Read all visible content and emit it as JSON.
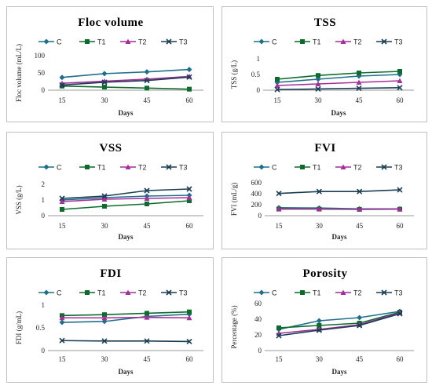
{
  "colors": {
    "C": "#1f6f8b",
    "T1": "#0d6b2b",
    "T2": "#a42f9b",
    "T3": "#1b3d55"
  },
  "chart_data": [
    {
      "type": "line",
      "title": "Floc volume",
      "xlabel": "Days",
      "ylabel": "Floc volume (mL/L)",
      "categories": [
        "15",
        "30",
        "45",
        "60"
      ],
      "ylim": [
        0,
        100
      ],
      "yticks": [
        "0",
        "50",
        "100"
      ],
      "legend": "top",
      "series": [
        {
          "name": "C",
          "values": [
            37,
            48,
            53,
            60
          ]
        },
        {
          "name": "T1",
          "values": [
            12,
            9,
            6,
            3
          ]
        },
        {
          "name": "T2",
          "values": [
            20,
            26,
            32,
            40
          ]
        },
        {
          "name": "T3",
          "values": [
            15,
            23,
            28,
            38
          ]
        }
      ]
    },
    {
      "type": "line",
      "title": "TSS",
      "xlabel": "Days",
      "ylabel": "TSS (g/L)",
      "categories": [
        "15",
        "30",
        "45",
        "60"
      ],
      "ylim": [
        0,
        1
      ],
      "yticks": [
        "0",
        "0.5",
        "1"
      ],
      "legend": "top",
      "series": [
        {
          "name": "C",
          "values": [
            0.25,
            0.35,
            0.45,
            0.5
          ]
        },
        {
          "name": "T1",
          "values": [
            0.35,
            0.47,
            0.55,
            0.6
          ]
        },
        {
          "name": "T2",
          "values": [
            0.15,
            0.2,
            0.25,
            0.3
          ]
        },
        {
          "name": "T3",
          "values": [
            0.02,
            0.04,
            0.06,
            0.08
          ]
        }
      ]
    },
    {
      "type": "line",
      "title": "VSS",
      "xlabel": "Days",
      "ylabel": "VSS (g/L)",
      "categories": [
        "15",
        "30",
        "45",
        "60"
      ],
      "ylim": [
        0,
        2
      ],
      "yticks": [
        "0",
        "1",
        "2"
      ],
      "legend": "top",
      "series": [
        {
          "name": "C",
          "values": [
            1.0,
            1.15,
            1.25,
            1.3
          ]
        },
        {
          "name": "T1",
          "values": [
            0.4,
            0.6,
            0.75,
            0.95
          ]
        },
        {
          "name": "T2",
          "values": [
            0.9,
            1.05,
            1.1,
            1.15
          ]
        },
        {
          "name": "T3",
          "values": [
            1.1,
            1.25,
            1.6,
            1.7
          ]
        }
      ]
    },
    {
      "type": "line",
      "title": "FVI",
      "xlabel": "Days",
      "ylabel": "FVI (mL/g)",
      "categories": [
        "15",
        "30",
        "45",
        "60"
      ],
      "ylim": [
        0,
        600
      ],
      "yticks": [
        "0",
        "200",
        "400",
        "600"
      ],
      "legend": "top",
      "series": [
        {
          "name": "C",
          "values": [
            145,
            140,
            125,
            125
          ]
        },
        {
          "name": "T1",
          "values": [
            120,
            120,
            115,
            118
          ]
        },
        {
          "name": "T2",
          "values": [
            125,
            125,
            118,
            120
          ]
        },
        {
          "name": "T3",
          "values": [
            405,
            440,
            440,
            470
          ]
        }
      ]
    },
    {
      "type": "line",
      "title": "FDI",
      "xlabel": "Days",
      "ylabel": "FDI (g/mL)",
      "categories": [
        "15",
        "30",
        "45",
        "60"
      ],
      "ylim": [
        0,
        1
      ],
      "yticks": [
        "0",
        "0.5",
        "1"
      ],
      "legend": "top",
      "series": [
        {
          "name": "C",
          "values": [
            0.62,
            0.64,
            0.75,
            0.8
          ]
        },
        {
          "name": "T1",
          "values": [
            0.77,
            0.79,
            0.82,
            0.85
          ]
        },
        {
          "name": "T2",
          "values": [
            0.72,
            0.72,
            0.73,
            0.72
          ]
        },
        {
          "name": "T3",
          "values": [
            0.22,
            0.21,
            0.21,
            0.2
          ]
        }
      ]
    },
    {
      "type": "line",
      "title": "Porosity",
      "xlabel": "Days",
      "ylabel": "Percentage (%)",
      "categories": [
        "15",
        "30",
        "45",
        "60"
      ],
      "ylim": [
        0,
        60
      ],
      "yticks": [
        "0",
        "20",
        "40",
        "60"
      ],
      "legend": "top",
      "series": [
        {
          "name": "C",
          "values": [
            27,
            38,
            42,
            50
          ]
        },
        {
          "name": "T1",
          "values": [
            29,
            32,
            35,
            49
          ]
        },
        {
          "name": "T2",
          "values": [
            22,
            27,
            33,
            48
          ]
        },
        {
          "name": "T3",
          "values": [
            19,
            26,
            32,
            47
          ]
        }
      ]
    }
  ]
}
